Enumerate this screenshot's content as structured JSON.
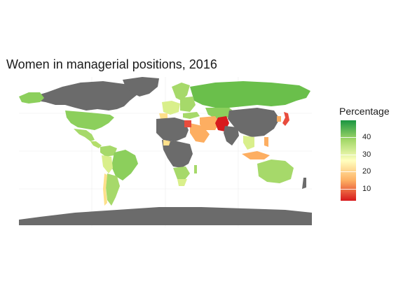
{
  "title": "Women in managerial positions, 2016",
  "legend": {
    "title": "Percentage",
    "min": 3,
    "max": 50,
    "ticks": [
      {
        "value": 40,
        "label": "40"
      },
      {
        "value": 30,
        "label": "30"
      },
      {
        "value": 20,
        "label": "20"
      },
      {
        "value": 10,
        "label": "10"
      }
    ],
    "colors": {
      "high": "#1a9641",
      "mid_high": "#a6d96a",
      "mid": "#ffffbf",
      "mid_low": "#fdae61",
      "low": "#d7191c",
      "no_data": "#6b6b6b",
      "background": "#ffffff"
    }
  }
}
